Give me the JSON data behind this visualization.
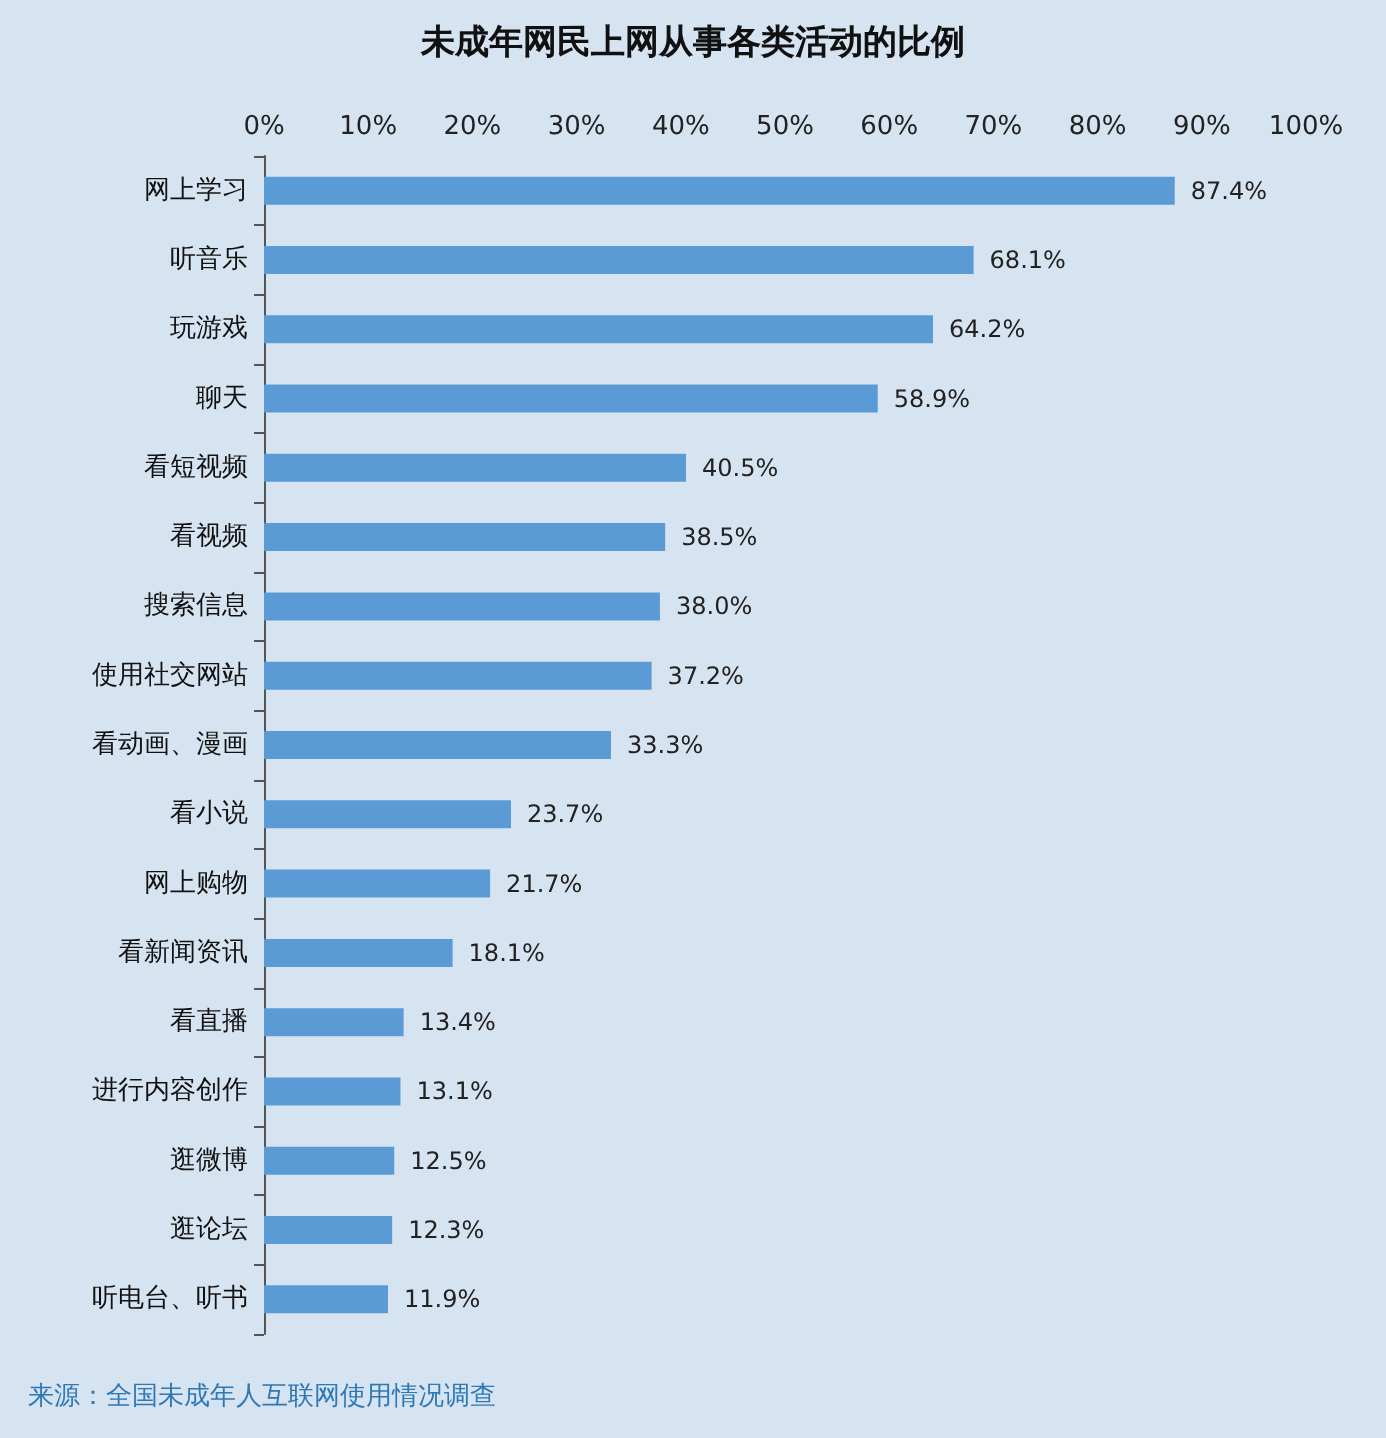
{
  "chart_data": {
    "type": "bar",
    "orientation": "horizontal",
    "title": "未成年网民上网从事各类活动的比例",
    "categories": [
      "网上学习",
      "听音乐",
      "玩游戏",
      "聊天",
      "看短视频",
      "看视频",
      "搜索信息",
      "使用社交网站",
      "看动画、漫画",
      "看小说",
      "网上购物",
      "看新闻资讯",
      "看直播",
      "进行内容创作",
      "逛微博",
      "逛论坛",
      "听电台、听书"
    ],
    "values": [
      87.4,
      68.1,
      64.2,
      58.9,
      40.5,
      38.5,
      38.0,
      37.2,
      33.3,
      23.7,
      21.7,
      18.1,
      13.4,
      13.1,
      12.5,
      12.3,
      11.9
    ],
    "value_labels": [
      "87.4%",
      "68.1%",
      "64.2%",
      "58.9%",
      "40.5%",
      "38.5%",
      "38.0%",
      "37.2%",
      "33.3%",
      "23.7%",
      "21.7%",
      "18.1%",
      "13.4%",
      "13.1%",
      "12.5%",
      "12.3%",
      "11.9%"
    ],
    "color": "#5b9bd5",
    "xlim": [
      0,
      100
    ],
    "xticks": [
      {
        "value": 0,
        "label": "0%"
      },
      {
        "value": 10,
        "label": "10%"
      },
      {
        "value": 20,
        "label": "20%"
      },
      {
        "value": 30,
        "label": "30%"
      },
      {
        "value": 40,
        "label": "40%"
      },
      {
        "value": 50,
        "label": "50%"
      },
      {
        "value": 60,
        "label": "60%"
      },
      {
        "value": 70,
        "label": "70%"
      },
      {
        "value": 80,
        "label": "80%"
      },
      {
        "value": 90,
        "label": "90%"
      },
      {
        "value": 100,
        "label": "100%"
      }
    ],
    "annotations": [
      "来源：全国未成年人互联网使用情况调查"
    ]
  }
}
